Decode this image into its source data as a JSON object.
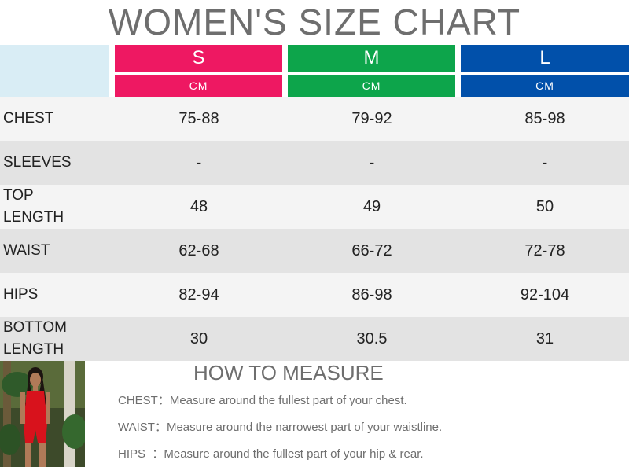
{
  "title": "WOMEN'S SIZE CHART",
  "colors": {
    "s": "#ee1862",
    "m": "#0da54b",
    "l": "#0150aa",
    "corner": "#d9edf5",
    "row_light": "#f4f4f4",
    "row_dark": "#e3e3e3"
  },
  "sizes": [
    {
      "label": "S",
      "unit": "CM"
    },
    {
      "label": "M",
      "unit": "CM"
    },
    {
      "label": "L",
      "unit": "CM"
    }
  ],
  "rows": [
    {
      "label": "CHEST",
      "values": [
        "75-88",
        "79-92",
        "85-98"
      ]
    },
    {
      "label": "SLEEVES",
      "values": [
        "-",
        "-",
        "-"
      ]
    },
    {
      "label_line1": "TOP",
      "label_line2": "LENGTH",
      "values": [
        "48",
        "49",
        "50"
      ]
    },
    {
      "label": "WAIST",
      "values": [
        "62-68",
        "66-72",
        "72-78"
      ]
    },
    {
      "label": "HIPS",
      "values": [
        "82-94",
        "86-98",
        "92-104"
      ]
    },
    {
      "label_line1": "BOTTOM",
      "label_line2": "LENGTH",
      "values": [
        "30",
        "30.5",
        "31"
      ]
    }
  ],
  "how_to_measure": {
    "title": "HOW TO MEASURE",
    "tips": [
      {
        "key": "CHEST：",
        "text": "Measure around the fullest part of your chest."
      },
      {
        "key": "WAIST：",
        "text": "Measure around the narrowest part of your waistline."
      },
      {
        "key": "HIPS  ：",
        "text": "Measure around the fullest part of your hip & rear."
      }
    ]
  }
}
